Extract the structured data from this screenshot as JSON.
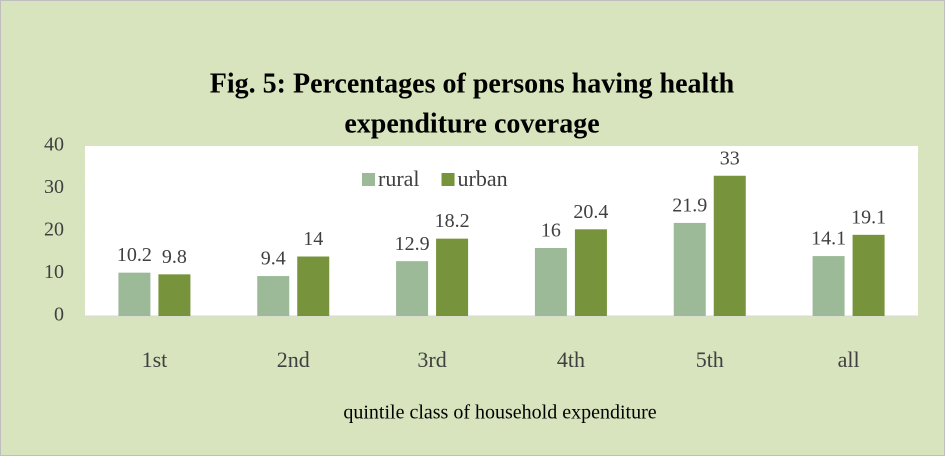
{
  "chart_data": {
    "type": "bar",
    "title": [
      "Fig. 5: Percentages of persons having health",
      "expenditure coverage"
    ],
    "x_label": "quintile class of household expenditure",
    "categories": [
      "1st",
      "2nd",
      "3rd",
      "4th",
      "5th",
      "all"
    ],
    "series": [
      {
        "name": "rural",
        "color": "#9cba98",
        "values": [
          10.2,
          9.4,
          12.9,
          16,
          21.9,
          14.1
        ]
      },
      {
        "name": "urban",
        "color": "#77933c",
        "values": [
          9.8,
          14,
          18.2,
          20.4,
          33,
          19.1
        ]
      }
    ],
    "ylim": [
      0,
      40
    ],
    "yticks": [
      0,
      10,
      20,
      30,
      40
    ],
    "legend": "top"
  }
}
